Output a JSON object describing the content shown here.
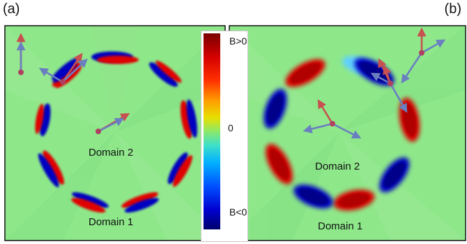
{
  "panels": {
    "a": {
      "letter": "(a)",
      "inner_domain": "Domain 2",
      "outer_domain": "Domain 1"
    },
    "b": {
      "letter": "(b)",
      "inner_domain": "Domain 2",
      "outer_domain": "Domain 1"
    }
  },
  "colorbar": {
    "top": "B>0",
    "middle": "0",
    "bottom": "B<0"
  },
  "colors": {
    "background": "#8ee88a",
    "positive_lobe": "#d40000",
    "negative_lobe": "#0000c0",
    "arrow_red": "#c85050",
    "arrow_blue": "#6a7fc0",
    "node": "#b04060"
  }
}
